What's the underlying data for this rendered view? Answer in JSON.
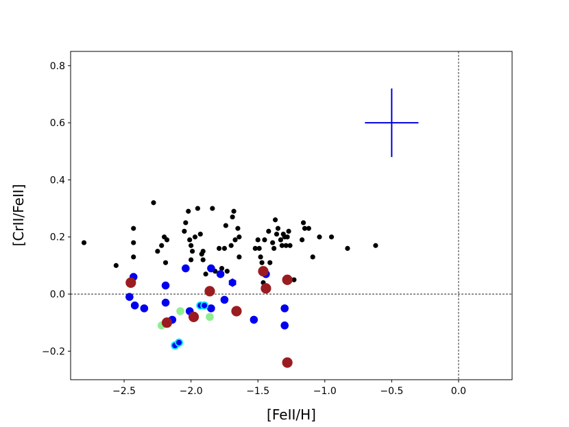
{
  "chart_data": {
    "type": "scatter",
    "xlabel": "[FeII/H]",
    "ylabel": "[CrII/FeII]",
    "xlim": [
      -2.9,
      0.4
    ],
    "ylim": [
      -0.3,
      0.85
    ],
    "x_ticks": [
      -2.5,
      -2.0,
      -1.5,
      -1.0,
      -0.5,
      0.0
    ],
    "x_tick_labels": [
      "−2.5",
      "−2.0",
      "−1.5",
      "−1.0",
      "−0.5",
      "0.0"
    ],
    "y_ticks": [
      -0.2,
      0.0,
      0.2,
      0.4,
      0.6,
      0.8
    ],
    "y_tick_labels": [
      "−0.2",
      "0.0",
      "0.2",
      "0.4",
      "0.6",
      "0.8"
    ],
    "reference_lines": {
      "horizontal_y": 0.0,
      "vertical_x": 0.0,
      "style": "dashed",
      "color": "#000000"
    },
    "error_bar": {
      "x": -0.5,
      "y": 0.6,
      "xerr": 0.2,
      "yerr": 0.12,
      "color": "#0000dd"
    },
    "series": [
      {
        "color": "#000000",
        "marker": "small-circle",
        "points": [
          [
            -2.8,
            0.18
          ],
          [
            -2.56,
            0.1
          ],
          [
            -2.43,
            0.23
          ],
          [
            -2.43,
            0.18
          ],
          [
            -2.43,
            0.13
          ],
          [
            -2.28,
            0.32
          ],
          [
            -2.25,
            0.15
          ],
          [
            -2.22,
            0.17
          ],
          [
            -2.2,
            0.2
          ],
          [
            -2.19,
            0.11
          ],
          [
            -2.18,
            0.19
          ],
          [
            -2.05,
            0.22
          ],
          [
            -2.04,
            0.25
          ],
          [
            -2.02,
            0.29
          ],
          [
            -2.01,
            0.19
          ],
          [
            -2.0,
            0.17
          ],
          [
            -2.0,
            0.12
          ],
          [
            -1.99,
            0.15
          ],
          [
            -1.97,
            0.2
          ],
          [
            -1.95,
            0.3
          ],
          [
            -1.93,
            0.21
          ],
          [
            -1.92,
            0.14
          ],
          [
            -1.91,
            0.15
          ],
          [
            -1.91,
            0.12
          ],
          [
            -1.89,
            0.07
          ],
          [
            -1.84,
            0.3
          ],
          [
            -1.82,
            0.08
          ],
          [
            -1.79,
            0.16
          ],
          [
            -1.77,
            0.09
          ],
          [
            -1.75,
            0.16
          ],
          [
            -1.74,
            0.24
          ],
          [
            -1.73,
            0.08
          ],
          [
            -1.7,
            0.17
          ],
          [
            -1.69,
            0.27
          ],
          [
            -1.68,
            0.29
          ],
          [
            -1.67,
            0.19
          ],
          [
            -1.65,
            0.23
          ],
          [
            -1.64,
            0.2
          ],
          [
            -1.64,
            0.13
          ],
          [
            -1.52,
            0.16
          ],
          [
            -1.5,
            0.19
          ],
          [
            -1.49,
            0.16
          ],
          [
            -1.48,
            0.13
          ],
          [
            -1.47,
            0.11
          ],
          [
            -1.46,
            0.04
          ],
          [
            -1.45,
            0.19
          ],
          [
            -1.42,
            0.22
          ],
          [
            -1.41,
            0.11
          ],
          [
            -1.39,
            0.18
          ],
          [
            -1.38,
            0.16
          ],
          [
            -1.37,
            0.26
          ],
          [
            -1.36,
            0.21
          ],
          [
            -1.35,
            0.23
          ],
          [
            -1.33,
            0.19
          ],
          [
            -1.32,
            0.17
          ],
          [
            -1.31,
            0.21
          ],
          [
            -1.3,
            0.2
          ],
          [
            -1.29,
            0.17
          ],
          [
            -1.28,
            0.2
          ],
          [
            -1.27,
            0.22
          ],
          [
            -1.26,
            0.17
          ],
          [
            -1.23,
            0.05
          ],
          [
            -1.17,
            0.19
          ],
          [
            -1.16,
            0.25
          ],
          [
            -1.15,
            0.23
          ],
          [
            -1.12,
            0.23
          ],
          [
            -1.09,
            0.13
          ],
          [
            -1.04,
            0.2
          ],
          [
            -0.95,
            0.2
          ],
          [
            -0.83,
            0.16
          ],
          [
            -0.62,
            0.17
          ]
        ]
      },
      {
        "color": "#0000ee",
        "marker": "circle",
        "points": [
          [
            -2.43,
            0.06
          ],
          [
            -2.46,
            -0.01
          ],
          [
            -2.42,
            -0.04
          ],
          [
            -2.35,
            -0.05
          ],
          [
            -2.19,
            0.03
          ],
          [
            -2.19,
            -0.03
          ],
          [
            -2.14,
            -0.09
          ],
          [
            -2.04,
            0.09
          ],
          [
            -2.01,
            -0.06
          ],
          [
            -1.85,
            0.09
          ],
          [
            -1.85,
            -0.05
          ],
          [
            -1.78,
            0.07
          ],
          [
            -1.75,
            -0.02
          ],
          [
            -1.53,
            -0.09
          ],
          [
            -1.44,
            0.07
          ],
          [
            -1.3,
            -0.05
          ],
          [
            -1.3,
            -0.11
          ]
        ]
      },
      {
        "color": "#0000ee",
        "marker": "hexagon",
        "points": [
          [
            -1.69,
            0.04
          ]
        ]
      },
      {
        "color": "#0000ee",
        "marker": "circle-cyan-outline",
        "points": [
          [
            -2.12,
            -0.18
          ],
          [
            -2.09,
            -0.17
          ],
          [
            -1.93,
            -0.04
          ],
          [
            -1.9,
            -0.04
          ]
        ]
      },
      {
        "color": "#90ee90",
        "marker": "circle",
        "points": [
          [
            -2.22,
            -0.11
          ],
          [
            -2.08,
            -0.06
          ],
          [
            -1.86,
            -0.08
          ]
        ]
      },
      {
        "color": "#9b1c20",
        "marker": "large-circle",
        "points": [
          [
            -2.45,
            0.04
          ],
          [
            -2.18,
            -0.1
          ],
          [
            -1.98,
            -0.08
          ],
          [
            -1.86,
            0.01
          ],
          [
            -1.66,
            -0.06
          ],
          [
            -1.46,
            0.08
          ],
          [
            -1.44,
            0.02
          ],
          [
            -1.28,
            0.05
          ],
          [
            -1.28,
            -0.24
          ]
        ]
      }
    ]
  }
}
